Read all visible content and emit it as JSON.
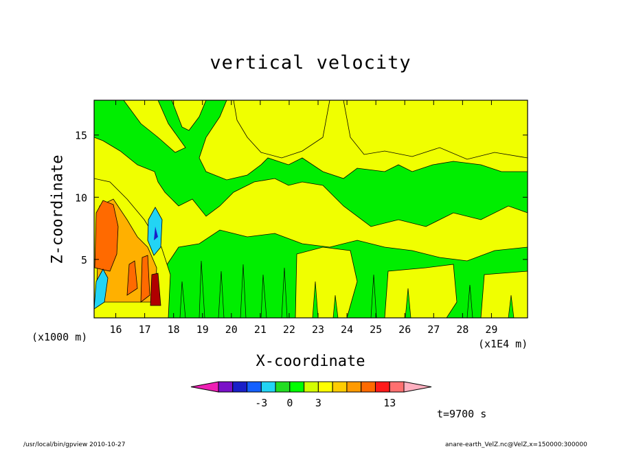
{
  "chart_data": {
    "type": "heatmap",
    "title": "vertical velocity",
    "xlabel": "X-coordinate",
    "ylabel": "Z-coordinate",
    "x_unit_left": "(x1000 m)",
    "x_unit_right": "(x1E4 m)",
    "xlim": [
      15.25,
      30.25
    ],
    "ylim": [
      0.3,
      17.8
    ],
    "x_ticks": [
      "16",
      "17",
      "18",
      "19",
      "20",
      "21",
      "22",
      "23",
      "24",
      "25",
      "26",
      "27",
      "28",
      "29"
    ],
    "y_ticks": [
      "5",
      "10",
      "15"
    ],
    "time": "t=9700 s",
    "colorbar": {
      "colors": [
        "#ee1fb4",
        "#7a10c8",
        "#1a1fc8",
        "#1460ff",
        "#22d4f4",
        "#22dd22",
        "#00ff00",
        "#d4ff00",
        "#ffff00",
        "#ffcc00",
        "#ff9a00",
        "#ff6a00",
        "#ff1a1a",
        "#ff7070",
        "#ffb0c0"
      ],
      "tick_labels": [
        "-3",
        "0",
        "3",
        "13"
      ]
    },
    "regions": {
      "background": "yellow",
      "green_bands": [
        {
          "x": [
            15.3,
            17.3
          ],
          "z": [
            10.0,
            17.8
          ]
        },
        {
          "x": [
            17.3,
            22.5
          ],
          "z": [
            9.3,
            17.8
          ]
        },
        {
          "x": [
            20.5,
            30.0
          ],
          "z": [
            5.5,
            12.5
          ]
        },
        {
          "x": [
            17.6,
            30.0
          ],
          "z": [
            0.3,
            2.5
          ]
        }
      ],
      "updraft_core": {
        "x": [
          15.4,
          16.0
        ],
        "z": [
          2.5,
          9.5
        ],
        "color": "orange"
      },
      "downdraft_core": {
        "x": [
          16.9,
          17.2
        ],
        "z": [
          6.0,
          8.5
        ],
        "color": "cyan"
      },
      "max_core": {
        "x": [
          17.0,
          17.4
        ],
        "z": [
          1.0,
          3.5
        ],
        "color": "darkred"
      }
    }
  },
  "footer": {
    "left": "/usr/local/bin/gpview   2010-10-27",
    "right": "anare-earth_VelZ.nc@VelZ,x=150000:300000"
  }
}
